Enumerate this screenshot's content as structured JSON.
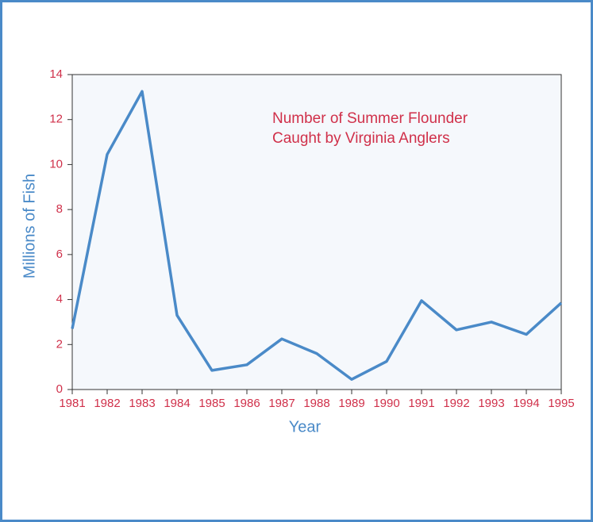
{
  "chart_data": {
    "type": "line",
    "title": [
      "Number of Summer Flounder",
      "Caught by Virginia Anglers"
    ],
    "x_label": "Year",
    "y_label": "Millions of Fish",
    "x": [
      1981,
      1982,
      1983,
      1984,
      1985,
      1986,
      1987,
      1988,
      1989,
      1990,
      1991,
      1992,
      1993,
      1994,
      1995
    ],
    "series": [
      {
        "color": "#4a8ac8",
        "values": [
          2.7,
          10.45,
          13.25,
          3.3,
          0.85,
          1.1,
          2.25,
          1.6,
          0.45,
          1.25,
          3.95,
          2.65,
          3.0,
          2.45,
          3.85
        ]
      }
    ],
    "xlim": [
      1981,
      1995
    ],
    "xticks": [
      1981,
      1982,
      1983,
      1984,
      1985,
      1986,
      1987,
      1988,
      1989,
      1990,
      1991,
      1992,
      1993,
      1994,
      1995
    ],
    "ylim": [
      0,
      14
    ],
    "yticks": [
      0,
      2,
      4,
      6,
      8,
      10,
      12,
      14
    ],
    "grid": false
  }
}
